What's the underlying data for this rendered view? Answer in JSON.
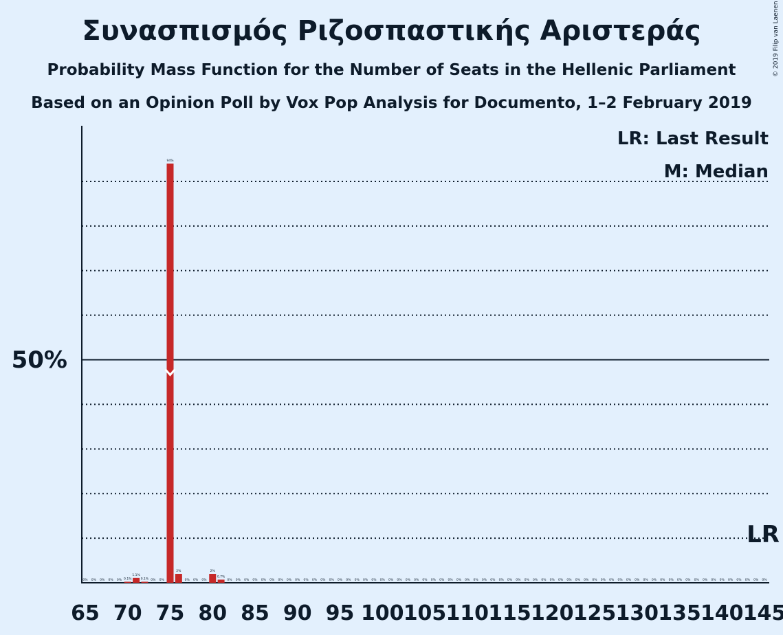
{
  "title": "Συνασπισμός Ριζοσπαστικής Αριστεράς",
  "subtitle": "Probability Mass Function for the Number of Seats in the Hellenic Parliament",
  "subtitle2": "Based on an Opinion Poll by Vox Pop Analysis for Documento, 1–2 February 2019",
  "copyright": "© 2019 Filip van Laenen",
  "legend": {
    "last_result": "LR: Last Result",
    "median": "M: Median"
  },
  "lr_marker": "LR",
  "median_marker": "M",
  "colors": {
    "bar": "#c62828",
    "background": "#e3f0fd",
    "text": "#0d1b2a",
    "median": "#ffffff"
  },
  "chart_data": {
    "type": "bar",
    "x": [
      65,
      66,
      67,
      68,
      69,
      70,
      71,
      72,
      73,
      74,
      75,
      76,
      77,
      78,
      79,
      80,
      81,
      82,
      83,
      84,
      85,
      86,
      87,
      88,
      89,
      90,
      91,
      92,
      93,
      94,
      95,
      96,
      97,
      98,
      99,
      100,
      101,
      102,
      103,
      104,
      105,
      106,
      107,
      108,
      109,
      110,
      111,
      112,
      113,
      114,
      115,
      116,
      117,
      118,
      119,
      120,
      121,
      122,
      123,
      124,
      125,
      126,
      127,
      128,
      129,
      130,
      131,
      132,
      133,
      134,
      135,
      136,
      137,
      138,
      139,
      140,
      141,
      142,
      143,
      144,
      145
    ],
    "values": [
      0,
      0,
      0,
      0,
      0,
      0.1,
      1.1,
      0.1,
      0,
      0,
      94,
      2,
      0,
      0,
      0,
      2,
      0.7,
      0,
      0,
      0,
      0,
      0,
      0,
      0,
      0,
      0,
      0,
      0,
      0,
      0,
      0,
      0,
      0,
      0,
      0,
      0,
      0,
      0,
      0,
      0,
      0,
      0,
      0,
      0,
      0,
      0,
      0,
      0,
      0,
      0,
      0,
      0,
      0,
      0,
      0,
      0,
      0,
      0,
      0,
      0,
      0,
      0,
      0,
      0,
      0,
      0,
      0,
      0,
      0,
      0,
      0,
      0,
      0,
      0,
      0,
      0,
      0,
      0,
      0,
      0,
      0
    ],
    "value_labels": [
      "0%",
      "0%",
      "0%",
      "0%",
      "0%",
      "0.1%",
      "1.1%",
      "0.1%",
      "0%",
      "0%",
      "94%",
      "2%",
      "0%",
      "0%",
      "0%",
      "2%",
      "0.7%",
      "0%",
      "0%",
      "0%",
      "0%",
      "0%",
      "0%",
      "0%",
      "0%",
      "0%",
      "0%",
      "0%",
      "0%",
      "0%",
      "0%",
      "0%",
      "0%",
      "0%",
      "0%",
      "0%",
      "0%",
      "0%",
      "0%",
      "0%",
      "0%",
      "0%",
      "0%",
      "0%",
      "0%",
      "0%",
      "0%",
      "0%",
      "0%",
      "0%",
      "0%",
      "0%",
      "0%",
      "0%",
      "0%",
      "0%",
      "0%",
      "0%",
      "0%",
      "0%",
      "0%",
      "0%",
      "0%",
      "0%",
      "0%",
      "0%",
      "0%",
      "0%",
      "0%",
      "0%",
      "0%",
      "0%",
      "0%",
      "0%",
      "0%",
      "0%",
      "0%",
      "0%",
      "0%",
      "0%",
      "0%"
    ],
    "x_ticks": [
      65,
      70,
      75,
      80,
      85,
      90,
      95,
      100,
      105,
      110,
      115,
      120,
      125,
      130,
      135,
      140,
      145
    ],
    "x_tick_labels": [
      "65",
      "70",
      "75",
      "80",
      "85",
      "90",
      "95",
      "100",
      "105",
      "110",
      "115",
      "120",
      "125",
      "130",
      "135",
      "140",
      "145"
    ],
    "ylim": [
      0,
      102.2
    ],
    "gridlines": [
      10,
      20,
      30,
      40,
      60,
      70,
      80,
      90
    ],
    "majorline": 50,
    "ytick_label": "50%",
    "median": 75,
    "last_result": 145,
    "legend_position": "top-right"
  }
}
